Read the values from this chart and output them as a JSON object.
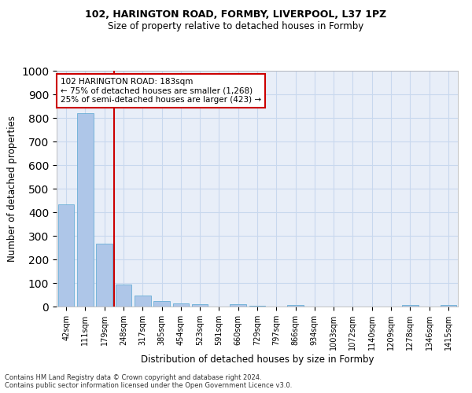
{
  "title1": "102, HARINGTON ROAD, FORMBY, LIVERPOOL, L37 1PZ",
  "title2": "Size of property relative to detached houses in Formby",
  "xlabel": "Distribution of detached houses by size in Formby",
  "ylabel": "Number of detached properties",
  "footnote1": "Contains HM Land Registry data © Crown copyright and database right 2024.",
  "footnote2": "Contains public sector information licensed under the Open Government Licence v3.0.",
  "categories": [
    "42sqm",
    "111sqm",
    "179sqm",
    "248sqm",
    "317sqm",
    "385sqm",
    "454sqm",
    "523sqm",
    "591sqm",
    "660sqm",
    "729sqm",
    "797sqm",
    "866sqm",
    "934sqm",
    "1003sqm",
    "1072sqm",
    "1140sqm",
    "1209sqm",
    "1278sqm",
    "1346sqm",
    "1415sqm"
  ],
  "values": [
    435,
    820,
    268,
    92,
    46,
    22,
    15,
    9,
    0,
    11,
    5,
    0,
    8,
    0,
    0,
    0,
    0,
    0,
    7,
    0,
    7
  ],
  "bar_color": "#aec6e8",
  "bar_edge_color": "#6aaed6",
  "grid_color": "#c8d8ee",
  "marker_line_color": "#cc0000",
  "annotation_text": "102 HARINGTON ROAD: 183sqm\n← 75% of detached houses are smaller (1,268)\n25% of semi-detached houses are larger (423) →",
  "annotation_box_color": "#ffffff",
  "annotation_box_edge": "#cc0000",
  "ylim": [
    0,
    1000
  ],
  "yticks": [
    0,
    100,
    200,
    300,
    400,
    500,
    600,
    700,
    800,
    900,
    1000
  ],
  "background_color": "#e8eef8"
}
